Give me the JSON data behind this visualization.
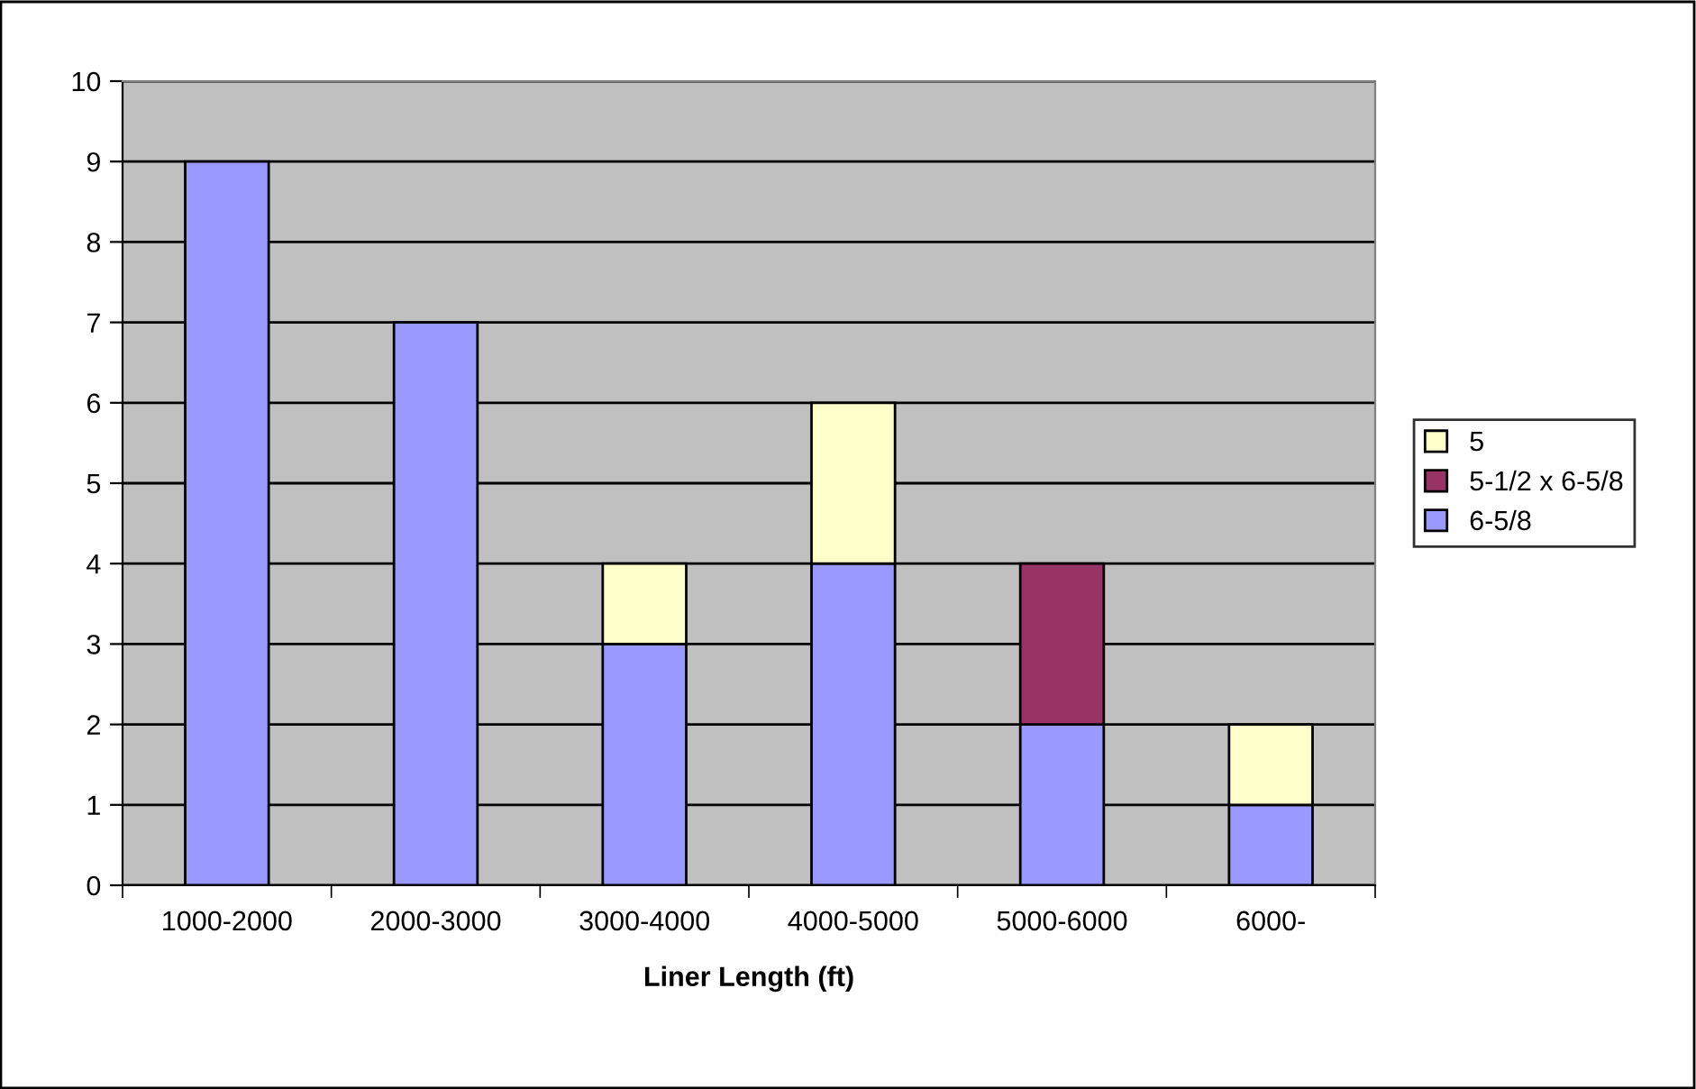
{
  "chart_data": {
    "type": "bar",
    "stacked": true,
    "xlabel": "Liner Length (ft)",
    "categories": [
      "1000-2000",
      "2000-3000",
      "3000-4000",
      "4000-5000",
      "5000-6000",
      "6000-"
    ],
    "series": [
      {
        "name": "6-5/8",
        "color": "#9999ff",
        "values": [
          9,
          7,
          3,
          4,
          2,
          1
        ]
      },
      {
        "name": "5-1/2 x 6-5/8",
        "color": "#993366",
        "values": [
          null,
          null,
          null,
          null,
          2,
          null
        ]
      },
      {
        "name": "5",
        "color": "#ffffcc",
        "values": [
          null,
          null,
          1,
          2,
          null,
          1
        ]
      }
    ],
    "ylim": [
      0,
      10
    ],
    "yticks": [
      0,
      1,
      2,
      3,
      4,
      5,
      6,
      7,
      8,
      9,
      10
    ],
    "grid": "y",
    "legend": "right"
  }
}
